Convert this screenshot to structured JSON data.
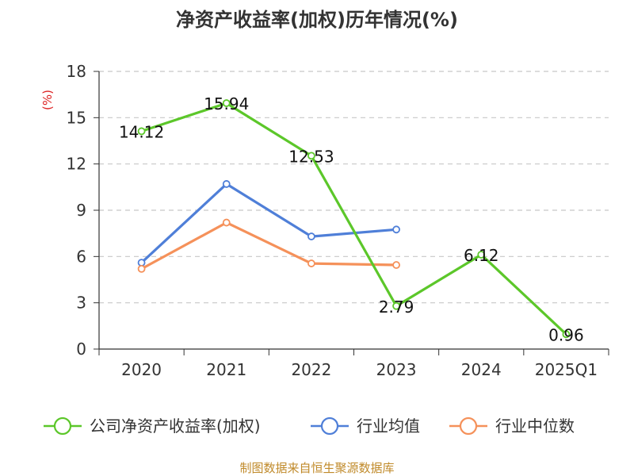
{
  "chart_data": {
    "type": "line",
    "title": "净资产收益率(加权)历年情况(%)",
    "unit_label": "(%)",
    "categories": [
      "2020",
      "2021",
      "2022",
      "2023",
      "2024",
      "2025Q1"
    ],
    "ylim": [
      0,
      18
    ],
    "yticks": [
      0,
      3,
      6,
      9,
      12,
      15,
      18
    ],
    "grid": true,
    "legend_position": "bottom",
    "series": [
      {
        "name": "公司净资产收益率(加权)",
        "color": "#5cc72a",
        "values": [
          14.12,
          15.94,
          12.53,
          2.79,
          6.12,
          0.96
        ],
        "labels": [
          "14.12",
          "15.94",
          "12.53",
          "2.79",
          "6.12",
          "0.96"
        ]
      },
      {
        "name": "行业均值",
        "color": "#4f7fd8",
        "values": [
          5.6,
          10.7,
          7.3,
          7.75,
          null,
          null
        ]
      },
      {
        "name": "行业中位数",
        "color": "#f5915a",
        "values": [
          5.2,
          8.2,
          5.55,
          5.45,
          null,
          null
        ]
      }
    ]
  },
  "footer": {
    "source": "制图数据来自恒生聚源数据库"
  }
}
